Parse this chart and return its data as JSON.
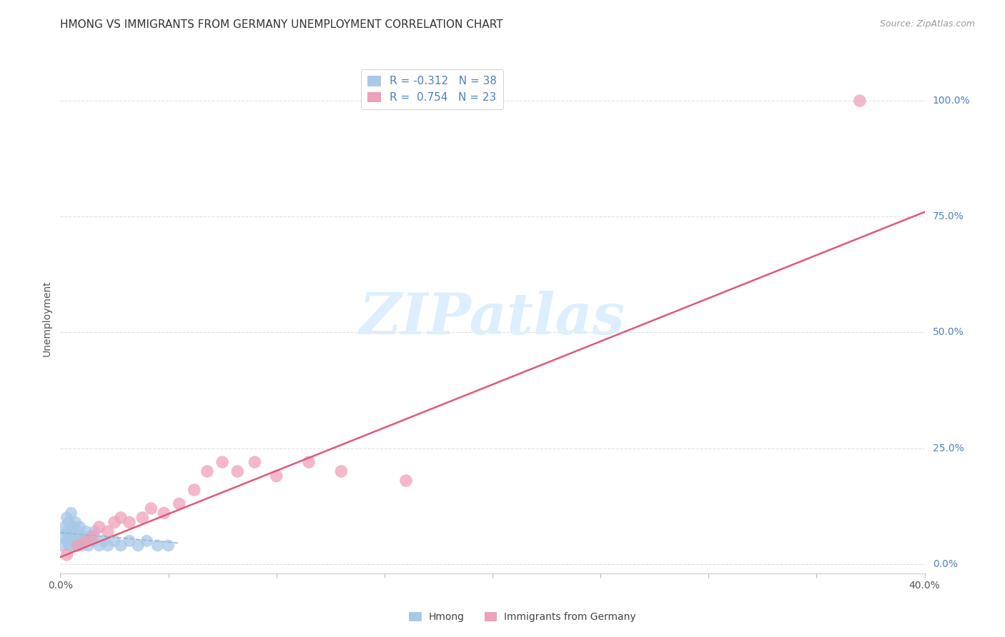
{
  "title": "HMONG VS IMMIGRANTS FROM GERMANY UNEMPLOYMENT CORRELATION CHART",
  "source": "Source: ZipAtlas.com",
  "ylabel": "Unemployment",
  "xlim": [
    0.0,
    0.4
  ],
  "ylim": [
    -0.02,
    1.08
  ],
  "ytick_labels": [
    "0.0%",
    "25.0%",
    "50.0%",
    "75.0%",
    "100.0%"
  ],
  "ytick_vals": [
    0.0,
    0.25,
    0.5,
    0.75,
    1.0
  ],
  "xtick_vals": [
    0.0,
    0.05,
    0.1,
    0.15,
    0.2,
    0.25,
    0.3,
    0.35,
    0.4
  ],
  "legend_R_blue": "-0.312",
  "legend_N_blue": "38",
  "legend_R_pink": "0.754",
  "legend_N_pink": "23",
  "legend_label_blue": "Hmong",
  "legend_label_pink": "Immigrants from Germany",
  "background_color": "#ffffff",
  "grid_color": "#e0e0e0",
  "blue_color": "#a8c8e8",
  "pink_color": "#f0a0b8",
  "blue_line_color": "#90b8d8",
  "pink_line_color": "#e05878",
  "right_axis_color": "#5080c0",
  "title_color": "#333333",
  "source_color": "#999999",
  "watermark_color": "#ddeeff",
  "title_fontsize": 11,
  "hmong_x": [
    0.001,
    0.002,
    0.002,
    0.003,
    0.003,
    0.003,
    0.004,
    0.004,
    0.004,
    0.005,
    0.005,
    0.005,
    0.006,
    0.006,
    0.007,
    0.007,
    0.008,
    0.008,
    0.009,
    0.009,
    0.01,
    0.01,
    0.011,
    0.012,
    0.013,
    0.014,
    0.015,
    0.016,
    0.018,
    0.02,
    0.022,
    0.025,
    0.028,
    0.032,
    0.036,
    0.04,
    0.045,
    0.05
  ],
  "hmong_y": [
    0.04,
    0.06,
    0.08,
    0.05,
    0.07,
    0.1,
    0.04,
    0.06,
    0.09,
    0.05,
    0.07,
    0.11,
    0.04,
    0.08,
    0.05,
    0.09,
    0.04,
    0.07,
    0.05,
    0.08,
    0.04,
    0.06,
    0.05,
    0.07,
    0.04,
    0.06,
    0.05,
    0.07,
    0.04,
    0.05,
    0.04,
    0.05,
    0.04,
    0.05,
    0.04,
    0.05,
    0.04,
    0.04
  ],
  "germany_x": [
    0.003,
    0.008,
    0.012,
    0.015,
    0.018,
    0.022,
    0.025,
    0.028,
    0.032,
    0.038,
    0.042,
    0.048,
    0.055,
    0.062,
    0.068,
    0.075,
    0.082,
    0.09,
    0.1,
    0.115,
    0.13,
    0.16,
    0.37
  ],
  "germany_y": [
    0.02,
    0.04,
    0.05,
    0.06,
    0.08,
    0.07,
    0.09,
    0.1,
    0.09,
    0.1,
    0.12,
    0.11,
    0.13,
    0.16,
    0.2,
    0.22,
    0.2,
    0.22,
    0.19,
    0.22,
    0.2,
    0.18,
    1.0
  ],
  "pink_trendline_x": [
    0.0,
    0.4
  ],
  "pink_trendline_y": [
    0.015,
    0.76
  ],
  "blue_trendline_x": [
    0.0,
    0.055
  ],
  "blue_trendline_y": [
    0.068,
    0.045
  ]
}
